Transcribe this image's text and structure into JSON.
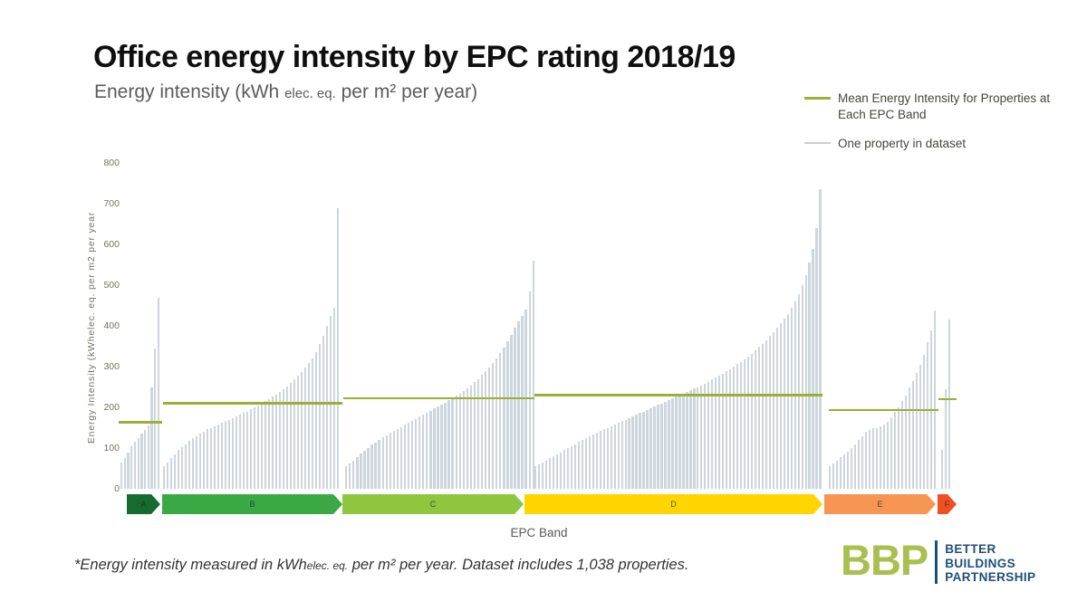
{
  "header": {
    "subtitle_prefix": "Energy intensity (kWh ",
    "subtitle_small": "elec. eq.",
    "subtitle_suffix": " per m² per year)"
  },
  "footnote": {
    "prefix": "*Energy intensity measured in kWh",
    "small": "elec. eq.",
    "suffix": " per m² per year. Dataset includes 1,038 properties."
  },
  "logo": {
    "abbr": "BBP",
    "lines": [
      "BETTER",
      "BUILDINGS",
      "PARTNERSHIP"
    ]
  },
  "chart_data": {
    "type": "bar",
    "title": "Office energy intensity by EPC rating 2018/19",
    "xlabel": "EPC Band",
    "ylabel": "Energy Intensity (kWhelec. eq. per m2 per year",
    "ylim": [
      0,
      800
    ],
    "yticks": [
      0,
      100,
      200,
      300,
      400,
      500,
      600,
      700,
      800
    ],
    "grid": false,
    "legend_position": "top-right",
    "legend": [
      {
        "label": "Mean Energy Intensity for Properties at Each EPC Band",
        "color": "#9cae33",
        "kind": "mean-line"
      },
      {
        "label": "One property in dataset",
        "color": "#cfcfcf",
        "kind": "property-bar"
      }
    ],
    "bar_color": "#cdd5dd",
    "mean_line_color": "#9cae33",
    "bands": [
      {
        "label": "A",
        "arrow_color": "#166b31",
        "mean": 163,
        "values": [
          65,
          75,
          90,
          105,
          115,
          125,
          135,
          145,
          155,
          250,
          345,
          470
        ]
      },
      {
        "label": "B",
        "arrow_color": "#39a845",
        "mean": 210,
        "values": [
          55,
          65,
          75,
          85,
          95,
          103,
          110,
          117,
          124,
          130,
          136,
          141,
          146,
          150,
          154,
          158,
          162,
          166,
          170,
          174,
          178,
          182,
          186,
          190,
          195,
          200,
          205,
          210,
          215,
          220,
          226,
          232,
          238,
          245,
          252,
          260,
          268,
          277,
          287,
          297,
          308,
          320,
          335,
          355,
          375,
          400,
          425,
          445,
          690
        ]
      },
      {
        "label": "C",
        "arrow_color": "#8dc63f",
        "mean": 222,
        "values": [
          55,
          62,
          70,
          78,
          86,
          94,
          101,
          108,
          114,
          120,
          126,
          132,
          137,
          142,
          147,
          152,
          157,
          162,
          167,
          172,
          177,
          182,
          187,
          192,
          197,
          202,
          207,
          212,
          217,
          222,
          228,
          234,
          240,
          247,
          254,
          262,
          270,
          279,
          288,
          298,
          308,
          320,
          333,
          347,
          362,
          378,
          395,
          412,
          425,
          440,
          485,
          560
        ]
      },
      {
        "label": "D",
        "arrow_color": "#ffd500",
        "mean": 230,
        "values": [
          55,
          60,
          65,
          70,
          75,
          80,
          85,
          90,
          95,
          100,
          105,
          110,
          115,
          120,
          125,
          130,
          134,
          138,
          142,
          146,
          150,
          154,
          158,
          162,
          166,
          170,
          174,
          178,
          182,
          186,
          190,
          194,
          198,
          202,
          206,
          210,
          214,
          218,
          222,
          226,
          230,
          234,
          238,
          242,
          246,
          250,
          254,
          258,
          263,
          268,
          273,
          278,
          283,
          288,
          294,
          300,
          306,
          312,
          318,
          325,
          332,
          340,
          348,
          356,
          365,
          375,
          385,
          395,
          406,
          418,
          430,
          445,
          460,
          478,
          500,
          525,
          555,
          590,
          640,
          735
        ]
      },
      {
        "label": "E",
        "arrow_color": "#f79552",
        "mean": 193,
        "values": [
          55,
          62,
          70,
          78,
          85,
          92,
          100,
          110,
          120,
          130,
          140,
          145,
          148,
          150,
          153,
          158,
          165,
          175,
          188,
          200,
          215,
          230,
          248,
          265,
          285,
          305,
          330,
          360,
          390,
          437
        ]
      },
      {
        "label": "F",
        "arrow_color": "#f04e23",
        "mean": 220,
        "values": [
          95,
          245,
          415
        ]
      }
    ]
  }
}
